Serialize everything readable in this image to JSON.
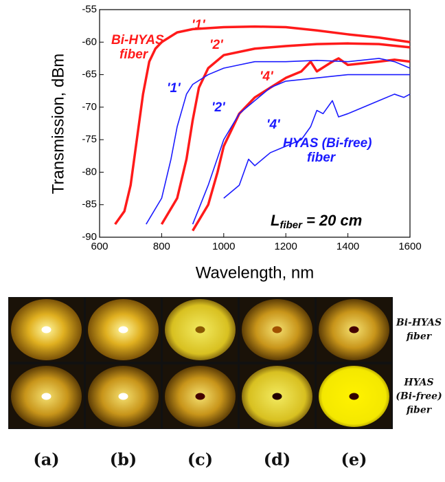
{
  "chart_data": {
    "type": "line",
    "y_label": "Transmission, dBm",
    "x_label": "Wavelength, nm",
    "xlim": [
      600,
      1600
    ],
    "xticks": [
      600,
      800,
      1000,
      1200,
      1400,
      1600
    ],
    "ylim": [
      -90,
      -55
    ],
    "yticks": [
      -90,
      -85,
      -80,
      -75,
      -70,
      -65,
      -60,
      -55
    ],
    "series": [
      {
        "color": "#ff1a1a",
        "x": [
          650,
          680,
          700,
          720,
          740,
          760,
          780,
          800,
          850,
          900,
          1000,
          1100,
          1200,
          1300,
          1400,
          1500,
          1600
        ],
        "values": [
          -88,
          -86,
          -82,
          -75,
          -68,
          -63,
          -61,
          -60,
          -58.5,
          -58,
          -57.7,
          -57.6,
          -57.7,
          -58.2,
          -58.8,
          -59.3,
          -60
        ]
      },
      {
        "color": "#ff1a1a",
        "x": [
          800,
          850,
          880,
          900,
          920,
          950,
          1000,
          1100,
          1200,
          1300,
          1400,
          1500,
          1600
        ],
        "values": [
          -88,
          -84,
          -78,
          -72,
          -67,
          -64,
          -62,
          -61,
          -60.6,
          -60.3,
          -60.2,
          -60.3,
          -60.8
        ]
      },
      {
        "color": "#ff1a1a",
        "x": [
          900,
          950,
          980,
          1000,
          1050,
          1100,
          1150,
          1200,
          1250,
          1280,
          1300,
          1350,
          1370,
          1400,
          1500,
          1550,
          1600
        ],
        "values": [
          -89,
          -85,
          -80,
          -76,
          -71,
          -68.5,
          -67,
          -65.5,
          -64.5,
          -63,
          -64.5,
          -63,
          -62.5,
          -63.5,
          -63,
          -62.7,
          -63
        ]
      },
      {
        "color": "#1a1aff",
        "x": [
          750,
          800,
          830,
          850,
          880,
          900,
          950,
          1000,
          1050,
          1100,
          1200,
          1300,
          1400,
          1500,
          1550,
          1600
        ],
        "values": [
          -88,
          -84,
          -78,
          -73,
          -68,
          -66.5,
          -65,
          -64,
          -63.5,
          -63,
          -63,
          -62.8,
          -63,
          -62.5,
          -63,
          -64
        ]
      },
      {
        "color": "#1a1aff",
        "x": [
          900,
          950,
          1000,
          1050,
          1100,
          1150,
          1200,
          1300,
          1400,
          1500,
          1600
        ],
        "values": [
          -88,
          -82,
          -75,
          -71,
          -69,
          -67,
          -66,
          -65.5,
          -65,
          -65,
          -65
        ]
      },
      {
        "color": "#1a1aff",
        "x": [
          1000,
          1050,
          1080,
          1100,
          1150,
          1200,
          1250,
          1280,
          1300,
          1320,
          1350,
          1370,
          1400,
          1450,
          1500,
          1550,
          1580,
          1600
        ],
        "values": [
          -84,
          -82,
          -78,
          -79,
          -77,
          -76,
          -75,
          -73,
          -70.5,
          -71,
          -69,
          -71.5,
          -71,
          -70,
          -69,
          -68,
          -68.5,
          -68
        ]
      }
    ],
    "annotations": [
      {
        "text": "'1'",
        "color": "#ff1a1a"
      },
      {
        "text": "'2'",
        "color": "#ff1a1a"
      },
      {
        "text": "'4'",
        "color": "#ff1a1a"
      },
      {
        "text": "Bi-HYAS",
        "color": "#ff1a1a"
      },
      {
        "text": "fiber",
        "color": "#ff1a1a"
      },
      {
        "text": "'1'",
        "color": "#1a1aff"
      },
      {
        "text": "'2'",
        "color": "#1a1aff"
      },
      {
        "text": "'4'",
        "color": "#1a1aff"
      },
      {
        "text": "HYAS (Bi-free)",
        "color": "#1a1aff"
      },
      {
        "text": "fiber",
        "color": "#1a1aff"
      }
    ],
    "length_note": {
      "main": "L",
      "sub": "fiber",
      "rest": "= 20 cm"
    }
  },
  "photo_panel": {
    "row_labels": [
      [
        "Bi-HYAS",
        "fiber"
      ],
      [
        "HYAS",
        "(Bi-free)",
        "fiber"
      ]
    ],
    "column_labels": [
      "(a)",
      "(b)",
      "(c)",
      "(d)",
      "(e)"
    ]
  }
}
